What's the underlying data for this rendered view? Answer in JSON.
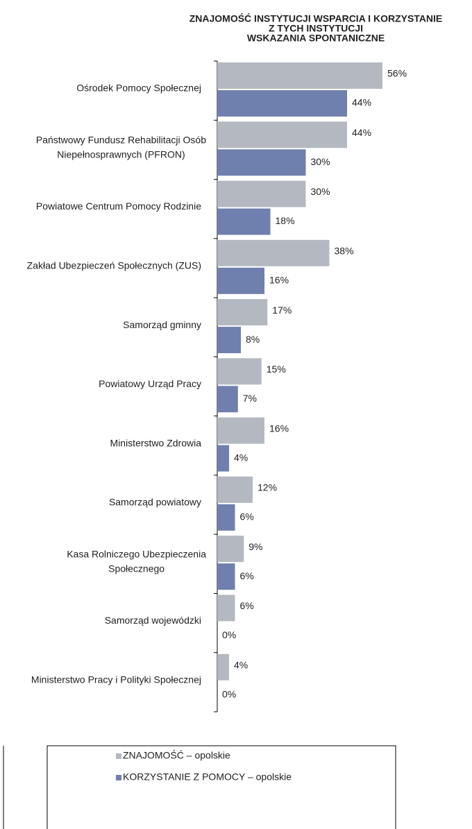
{
  "chart_data": {
    "type": "bar",
    "orientation": "horizontal",
    "title": [
      "ZNAJOMOŚĆ INSTYTUCJI WSPARCIA I KORZYSTANIE",
      "Z TYCH INSTYTUCJI",
      "WSKAZANIA SPONTANICZNE"
    ],
    "categories": [
      [
        "Ośrodek Pomocy Społecznej"
      ],
      [
        "Państwowy Fundusz Rehabilitacji Osób",
        "Niepełnosprawnych (PFRON)"
      ],
      [
        "Powiatowe Centrum Pomocy Rodzinie"
      ],
      [
        "Zakład Ubezpieczeń Społecznych (ZUS)"
      ],
      [
        "Samorząd gminny"
      ],
      [
        "Powiatowy Urząd Pracy"
      ],
      [
        "Ministerstwo Zdrowia"
      ],
      [
        "Samorząd powiatowy"
      ],
      [
        "Kasa Rolniczego Ubezpieczenia",
        "Społecznego"
      ],
      [
        "Samorząd wojewódzki"
      ],
      [
        "Ministerstwo Pracy i Polityki Społecznej"
      ]
    ],
    "series": [
      {
        "name": "ZNAJOMOŚĆ –  opolskie",
        "color": "#b4b9c1",
        "values": [
          56,
          44,
          30,
          38,
          17,
          15,
          16,
          12,
          9,
          6,
          4
        ],
        "value_labels": [
          "56%",
          "44%",
          "30%",
          "38%",
          "17%",
          "15%",
          "16%",
          "12%",
          "9%",
          "6%",
          "4%"
        ]
      },
      {
        "name": "KORZYSTANIE Z POMOCY –  opolskie",
        "color": "#6f7fae",
        "values": [
          44,
          30,
          18,
          16,
          8,
          7,
          4,
          6,
          6,
          0,
          0
        ],
        "value_labels": [
          "44%",
          "30%",
          "18%",
          "16%",
          "8%",
          "7%",
          "4%",
          "6%",
          "6%",
          "0%",
          "0%"
        ]
      }
    ],
    "xlim": [
      0,
      60
    ]
  }
}
